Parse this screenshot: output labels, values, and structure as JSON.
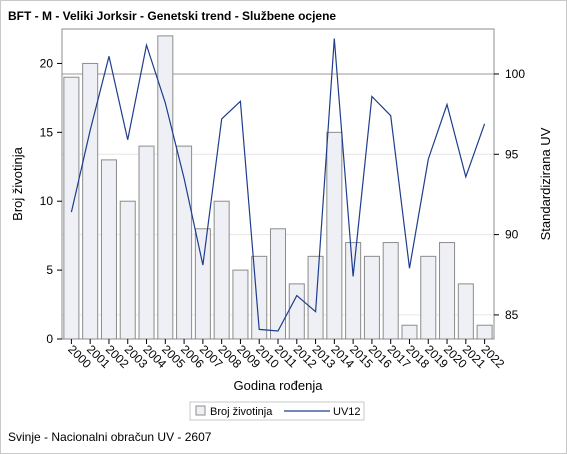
{
  "title": "BFT - M - Veliki Jorksir - Genetski trend - Službene ocjene",
  "footer": "Svinje - Nacionalni obračun UV - 2607",
  "chart_data": {
    "type": "bar+line",
    "xlabel": "Godina rođenja",
    "ylabel_left": "Broj životinja",
    "ylabel_right": "Standardizirana UV",
    "categories": [
      "2000",
      "2001",
      "2002",
      "2003",
      "2004",
      "2005",
      "2006",
      "2007",
      "2008",
      "2009",
      "2010",
      "2011",
      "2012",
      "2013",
      "2014",
      "2015",
      "2016",
      "2017",
      "2018",
      "2019",
      "2020",
      "2021",
      "2022"
    ],
    "bar_series": {
      "name": "Broj životinja",
      "values": [
        19,
        20,
        13,
        10,
        14,
        22,
        14,
        8,
        10,
        5,
        6,
        8,
        4,
        6,
        15,
        7,
        6,
        7,
        1,
        6,
        7,
        4,
        1
      ]
    },
    "line_series": {
      "name": "UV12",
      "values": [
        91.4,
        96.5,
        101.1,
        95.9,
        101.8,
        98.2,
        93.5,
        88.1,
        97.2,
        98.3,
        84.1,
        84.0,
        86.2,
        85.2,
        102.2,
        87.4,
        98.6,
        97.4,
        87.9,
        94.7,
        98.1,
        93.6,
        96.9
      ]
    },
    "y_left_ticks": [
      0,
      5,
      10,
      15,
      20
    ],
    "y_right_ticks": [
      85,
      90,
      95,
      100
    ],
    "ylim_left": [
      0,
      22.5
    ],
    "ylim_right": [
      83.5,
      102.8
    ],
    "reference_line_right": 100,
    "colors": {
      "bar_fill": "#eef0f5",
      "bar_stroke": "#8c8c8c",
      "line": "#1f3d8c",
      "grid": "#e6e6e6",
      "reference": "#9a9a9a"
    },
    "legend_position": "bottom"
  }
}
